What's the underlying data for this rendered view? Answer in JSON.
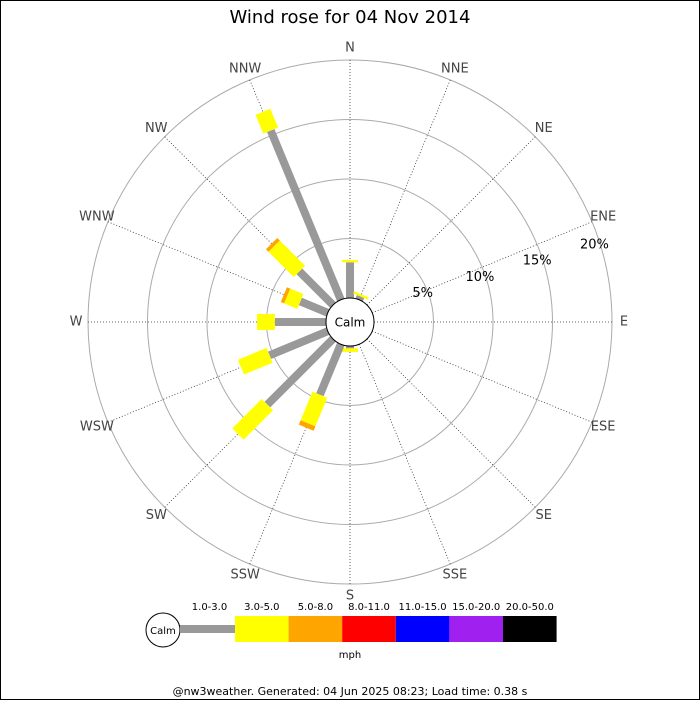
{
  "chart_data": {
    "type": "wind_rose",
    "title": "Wind rose for 04 Nov 2014",
    "directions": [
      "N",
      "NNE",
      "NE",
      "ENE",
      "E",
      "ESE",
      "SE",
      "SSE",
      "S",
      "SSW",
      "SW",
      "WSW",
      "W",
      "WNW",
      "NW",
      "NNW"
    ],
    "center_label": "Calm",
    "rlim": [
      0,
      20
    ],
    "rticks": [
      {
        "value": 5,
        "label": "5%"
      },
      {
        "value": 10,
        "label": "10%"
      },
      {
        "value": 15,
        "label": "15%"
      },
      {
        "value": 20,
        "label": "20%"
      }
    ],
    "series": [
      {
        "name": "1.0-3.0",
        "color": "#999999",
        "values": [
          3.0,
          0.3,
          0,
          0,
          0,
          0,
          0,
          0,
          0.2,
          4.6,
          7.8,
          5.3,
          4.3,
          2.5,
          4.0,
          15.4
        ]
      },
      {
        "name": "3.0-5.0",
        "color": "#ffff00",
        "values": [
          0.2,
          0.2,
          0,
          0,
          0,
          0,
          0,
          0,
          0.3,
          2.6,
          3.5,
          2.6,
          1.5,
          1.2,
          3.0,
          1.7
        ]
      },
      {
        "name": "5.0-8.0",
        "color": "#ffa500",
        "values": [
          0,
          0,
          0,
          0,
          0,
          0,
          0,
          0,
          0,
          0.4,
          0,
          0,
          0,
          0.3,
          0.3,
          0
        ]
      },
      {
        "name": "8.0-11.0",
        "color": "#ff0000",
        "values": [
          0,
          0,
          0,
          0,
          0,
          0,
          0,
          0,
          0,
          0,
          0,
          0,
          0,
          0,
          0,
          0
        ]
      },
      {
        "name": "11.0-15.0",
        "color": "#0000ff",
        "values": [
          0,
          0,
          0,
          0,
          0,
          0,
          0,
          0,
          0,
          0,
          0,
          0,
          0,
          0,
          0,
          0
        ]
      },
      {
        "name": "15.0-20.0",
        "color": "#a020f0",
        "values": [
          0,
          0,
          0,
          0,
          0,
          0,
          0,
          0,
          0,
          0,
          0,
          0,
          0,
          0,
          0,
          0
        ]
      },
      {
        "name": "20.0-50.0",
        "color": "#000000",
        "values": [
          0,
          0,
          0,
          0,
          0,
          0,
          0,
          0,
          0,
          0,
          0,
          0,
          0,
          0,
          0,
          0
        ]
      }
    ],
    "unit": "mph",
    "footer": "@nw3weather. Generated: 04 Jun 2025 08:23; Load time: 0.38 s"
  }
}
